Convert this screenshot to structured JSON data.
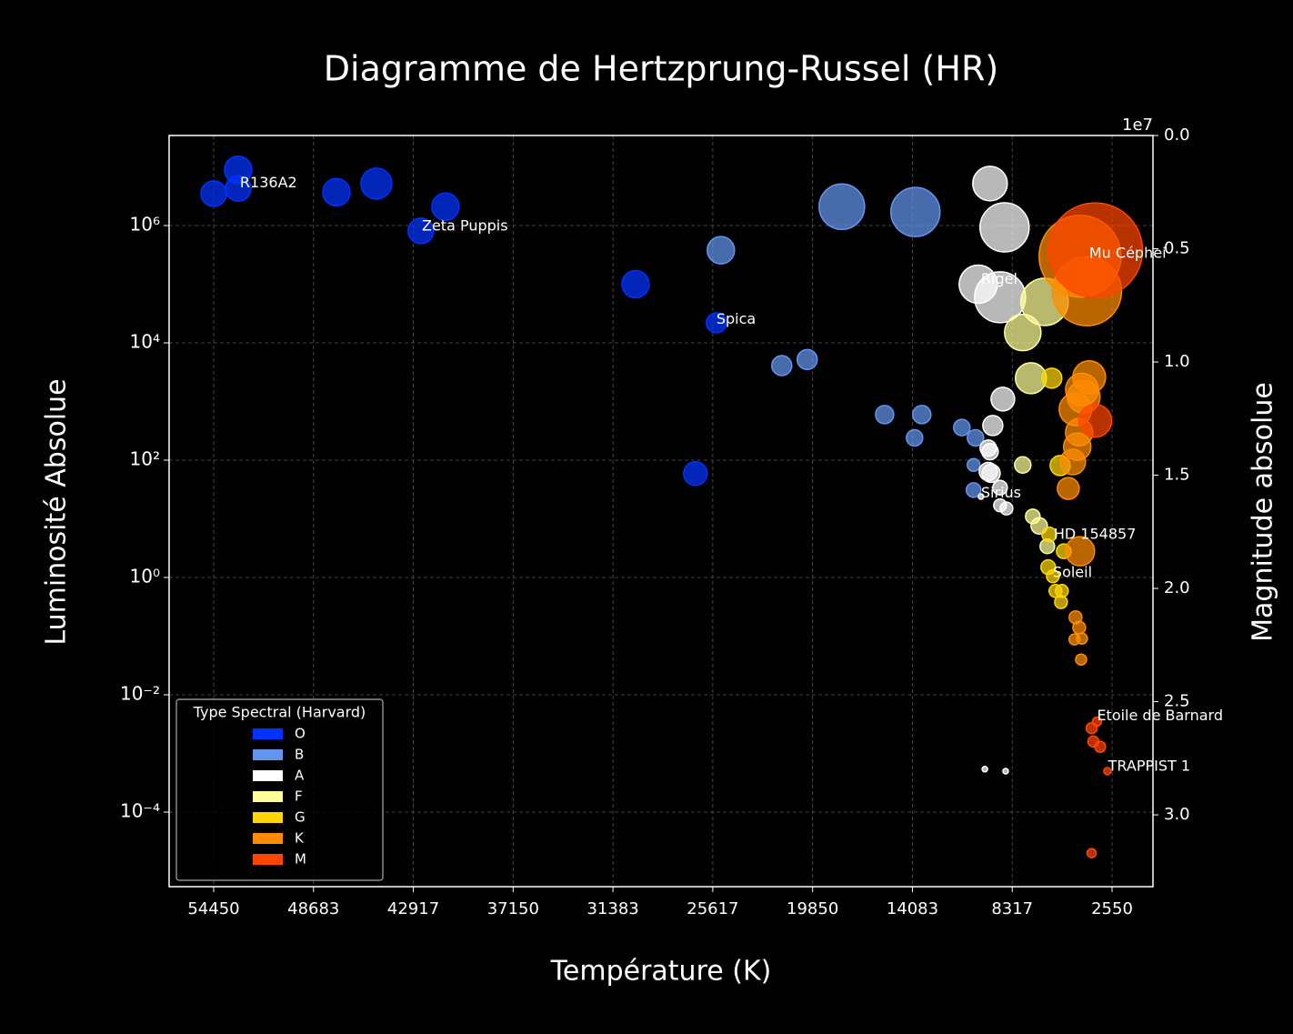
{
  "chart_data": {
    "type": "scatter",
    "title": "Diagramme de Hertzprung-Russel (HR)",
    "xlabel": "Température (K)",
    "ylabel": "Luminosité Absolue",
    "y2label": "Magnitude absolue",
    "yscale": "log",
    "grid": true,
    "xlim": [
      57023,
      187
    ],
    "xticks": [
      54450,
      48683,
      42917,
      37150,
      31383,
      25617,
      19850,
      14083,
      8317,
      2550
    ],
    "ylim": [
      5.36e-06,
      34300000.0
    ],
    "yticks": [
      {
        "value": 0.0001,
        "label": "10⁻⁴"
      },
      {
        "value": 0.01,
        "label": "10⁻²"
      },
      {
        "value": 1,
        "label": "10⁰"
      },
      {
        "value": 100,
        "label": "10²"
      },
      {
        "value": 10000,
        "label": "10⁴"
      },
      {
        "value": 1000000,
        "label": "10⁶"
      }
    ],
    "y2lim": [
      3.317,
      0
    ],
    "y2ticks": [
      {
        "value": 0,
        "label": "0.0"
      },
      0.5,
      {
        "value": 1,
        "label": "1.0"
      },
      1.5,
      {
        "value": 2,
        "label": "2.0"
      },
      2.5,
      {
        "value": 3,
        "label": "3.0"
      }
    ],
    "y2_offset_label": "1e7",
    "legend": "lower left",
    "legend_title": "Type Spectral (Harvard)",
    "series": [
      {
        "name": "O",
        "color": "#0033ff",
        "x": [
          54450,
          53032,
          53032,
          47360,
          45050,
          41060,
          42480,
          30080,
          25410,
          26620
        ],
        "values": [
          3500000.0,
          8900000.0,
          4300000.0,
          3700000.0,
          5200000.0,
          2100000.0,
          810000.0,
          100000.0,
          22000.0,
          59
        ],
        "sizes": [
          14,
          15,
          14,
          15,
          17,
          15,
          14,
          15,
          11,
          13
        ]
      },
      {
        "name": "B",
        "color": "#6495ed",
        "x": [
          25150,
          18160,
          13910,
          21630,
          20160,
          15690,
          13540,
          13960,
          11230,
          10440,
          10550,
          10550
        ],
        "values": [
          380000.0,
          2100000.0,
          1700000.0,
          4100,
          5200,
          600,
          600,
          240,
          360,
          240,
          83,
          31
        ],
        "sizes": [
          15,
          25,
          27,
          11,
          11,
          10,
          10,
          9,
          9,
          9,
          7,
          8
        ]
      },
      {
        "name": "A",
        "color": "#ffffff",
        "x": [
          9600,
          8760,
          10280,
          9020,
          8860,
          9440,
          9700,
          9600,
          9700,
          9540,
          9020,
          9020,
          8650,
          10120,
          9900,
          8700
        ],
        "values": [
          5200000.0,
          930000.0,
          100000.0,
          60000.0,
          1100,
          390,
          160,
          140,
          64,
          60,
          34,
          17,
          15,
          24,
          0.00054,
          0.0005
        ],
        "sizes": [
          19,
          27,
          21,
          28,
          13,
          11,
          9,
          9,
          10,
          10,
          8,
          7,
          7,
          3,
          3,
          3
        ]
      },
      {
        "name": "F",
        "color": "#ffff99",
        "x": [
          6450,
          7710,
          7240,
          7710,
          7130,
          6760,
          6290
        ],
        "values": [
          50000.0,
          15000.0,
          2500,
          83,
          11,
          7.6,
          3.4
        ],
        "sizes": [
          26,
          20,
          17,
          9,
          8,
          9,
          8
        ]
      },
      {
        "name": "G",
        "color": "#ffd700",
        "x": [
          6030,
          5550,
          6180,
          5340,
          6240,
          5970,
          5820,
          5450,
          5500
        ],
        "values": [
          2500,
          81,
          5.4,
          2.8,
          1.5,
          1.05,
          0.59,
          0.59,
          0.38
        ],
        "sizes": [
          11,
          11,
          8,
          8,
          8,
          7,
          7,
          7,
          7
        ]
      },
      {
        "name": "K",
        "color": "#ff8c00",
        "x": [
          4000,
          4400,
          3870,
          4290,
          4190,
          4660,
          4450,
          4560,
          4820,
          5080,
          4400,
          4660,
          4450,
          4290,
          4720,
          4340
        ],
        "values": [
          76000.0,
          300000.0,
          2600,
          1600,
          1200,
          740,
          300,
          170,
          93,
          33,
          2.8,
          0.21,
          0.14,
          0.091,
          0.088,
          0.04
        ],
        "sizes": [
          38,
          45,
          18,
          18,
          18,
          18,
          15,
          15,
          14,
          12,
          16,
          7,
          7,
          6,
          6,
          6
        ]
      },
      {
        "name": "M",
        "color": "#ff4500",
        "x": [
          3520,
          3520,
          3420,
          3730,
          3630,
          3240,
          2820,
          3730
        ],
        "values": [
          380000.0,
          470,
          0.0035,
          0.0027,
          0.0016,
          0.0013,
          0.0005,
          2e-05
        ],
        "sizes": [
          52,
          18,
          5,
          6,
          6,
          6,
          4,
          5
        ]
      }
    ],
    "annotations": [
      {
        "text": "R136A2",
        "x": 52930,
        "y": 5300000.0
      },
      {
        "text": "Zeta Puppis",
        "x": 42420,
        "y": 960000.0
      },
      {
        "text": "Spica",
        "x": 25410,
        "y": 25000.0
      },
      {
        "text": "Rigel",
        "x": 10120,
        "y": 120000.0
      },
      {
        "text": "Mu Céphei",
        "x": 3870,
        "y": 330000.0
      },
      {
        "text": "Sirius",
        "x": 10120,
        "y": 27
      },
      {
        "text": "HD 154857",
        "x": 5920,
        "y": 5.4
      },
      {
        "text": "Soleil",
        "x": 5970,
        "y": 1.2
      },
      {
        "text": "Etoile de Barnard",
        "x": 3420,
        "y": 0.0043
      },
      {
        "text": "TRAPPIST 1",
        "x": 2780,
        "y": 0.0006
      }
    ]
  }
}
